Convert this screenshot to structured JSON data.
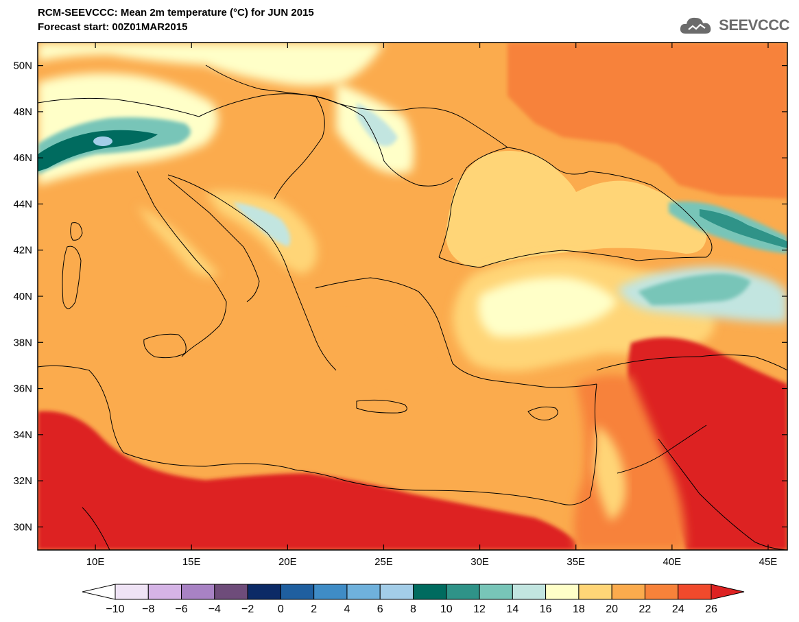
{
  "header": {
    "title": "RCM-SEEVCCC: Mean 2m temperature (°C) for JUN 2015",
    "subtitle": "Forecast start: 00Z01MAR2015"
  },
  "logo": {
    "text": "SEEVCCC",
    "icon": "cloud-icon"
  },
  "map": {
    "projection": "lat-lon",
    "lon_range": [
      7,
      46
    ],
    "lat_range": [
      29,
      51
    ],
    "lat_ticks": [
      "50N",
      "48N",
      "46N",
      "44N",
      "42N",
      "40N",
      "38N",
      "36N",
      "34N",
      "32N",
      "30N"
    ],
    "lon_ticks": [
      "10E",
      "15E",
      "20E",
      "25E",
      "30E",
      "35E",
      "40E",
      "45E"
    ],
    "field": "Mean 2m temperature",
    "units": "°C",
    "grid": false
  },
  "colorbar": {
    "labels": [
      "−10",
      "−8",
      "−6",
      "−4",
      "−2",
      "0",
      "2",
      "4",
      "6",
      "8",
      "10",
      "12",
      "14",
      "16",
      "18",
      "20",
      "22",
      "24",
      "26"
    ],
    "colors": [
      "#ffffff",
      "#efe3f5",
      "#d5b4e6",
      "#a882c4",
      "#6e4c7a",
      "#0c2a66",
      "#1f5f9f",
      "#3f8cc6",
      "#6fb1dc",
      "#a3cde8",
      "#006b5f",
      "#2f9388",
      "#78c5b8",
      "#c2e5e0",
      "#ffffc8",
      "#ffd577",
      "#fbab4d",
      "#f7823a",
      "#f04a2c",
      "#dd2222"
    ]
  },
  "chart_data": {
    "type": "heatmap",
    "title": "RCM-SEEVCCC: Mean 2m temperature (°C) for JUN 2015",
    "subtitle": "Forecast start: 00Z01MAR2015",
    "xlabel": "",
    "ylabel": "",
    "x_ticks": [
      "10E",
      "15E",
      "20E",
      "25E",
      "30E",
      "35E",
      "40E",
      "45E"
    ],
    "y_ticks": [
      "50N",
      "48N",
      "46N",
      "44N",
      "42N",
      "40N",
      "38N",
      "36N",
      "34N",
      "32N",
      "30N"
    ],
    "xlim": [
      7,
      46
    ],
    "ylim": [
      29,
      51
    ],
    "levels": [
      -10,
      -8,
      -6,
      -4,
      -2,
      0,
      2,
      4,
      6,
      8,
      10,
      12,
      14,
      16,
      18,
      20,
      22,
      24,
      26
    ]
  }
}
